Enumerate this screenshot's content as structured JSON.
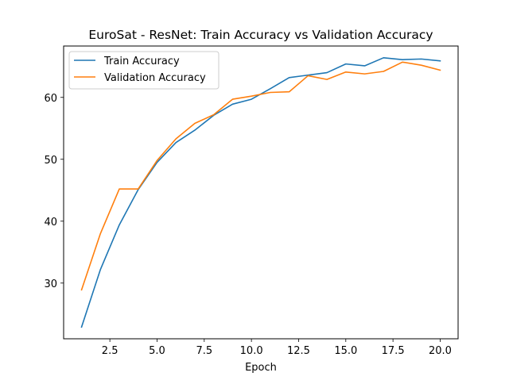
{
  "chart_data": {
    "type": "line",
    "title": "EuroSat - ResNet: Train Accuracy vs Validation Accuracy",
    "xlabel": "Epoch",
    "ylabel": "",
    "x": [
      1,
      2,
      3,
      4,
      5,
      6,
      7,
      8,
      9,
      10,
      11,
      12,
      13,
      14,
      15,
      16,
      17,
      18,
      19,
      20
    ],
    "xlim": [
      0.05,
      20.95
    ],
    "ylim": [
      21.0,
      68.3
    ],
    "xticks": [
      2.5,
      5.0,
      7.5,
      10.0,
      12.5,
      15.0,
      17.5,
      20.0
    ],
    "xtick_labels": [
      "2.5",
      "5.0",
      "7.5",
      "10.0",
      "12.5",
      "15.0",
      "17.5",
      "20.0"
    ],
    "yticks": [
      30,
      40,
      50,
      60
    ],
    "ytick_labels": [
      "30",
      "40",
      "50",
      "60"
    ],
    "grid": false,
    "legend_position": "top-left",
    "series": [
      {
        "name": "Train Accuracy",
        "color": "#1f77b4",
        "values": [
          22.9,
          32.2,
          39.4,
          45.1,
          49.5,
          52.7,
          54.7,
          57.1,
          58.9,
          59.7,
          61.4,
          63.2,
          63.6,
          64.0,
          65.4,
          65.1,
          66.4,
          66.1,
          66.2,
          65.9
        ]
      },
      {
        "name": "Validation Accuracy",
        "color": "#ff7f0e",
        "values": [
          28.9,
          38.0,
          45.2,
          45.2,
          49.8,
          53.3,
          55.8,
          57.2,
          59.7,
          60.2,
          60.8,
          60.9,
          63.5,
          62.9,
          64.1,
          63.8,
          64.2,
          65.7,
          65.2,
          64.4
        ]
      }
    ]
  }
}
